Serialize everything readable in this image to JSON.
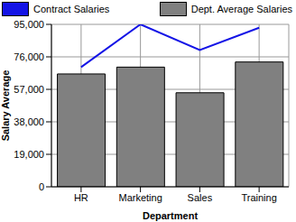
{
  "chart_data": {
    "type": "bar",
    "categories": [
      "HR",
      "Marketing",
      "Sales",
      "Training"
    ],
    "series": [
      {
        "name": "Contract Salaries",
        "type": "line",
        "color": "#1414e6",
        "values": [
          70000,
          95000,
          80000,
          93000
        ]
      },
      {
        "name": "Dept. Average Salaries",
        "type": "bar",
        "color": "#808080",
        "values": [
          66000,
          70000,
          55000,
          73000
        ]
      }
    ],
    "x_label": "Department",
    "y_label": "Salary Average",
    "ylim": [
      0,
      95000
    ],
    "yticks": [
      0,
      {
        "value": 19000,
        "label": "19,000"
      },
      {
        "value": 38000,
        "label": "38,000"
      },
      {
        "value": 57000,
        "label": "57,000"
      },
      {
        "value": 76000,
        "label": "76,000"
      },
      {
        "value": 95000,
        "label": "95,000"
      }
    ],
    "grid": true,
    "legend": "top"
  }
}
